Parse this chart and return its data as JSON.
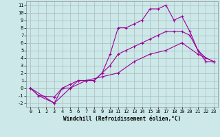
{
  "title": "",
  "xlabel": "Windchill (Refroidissement éolien,°C)",
  "ylabel": "",
  "bg_color": "#cce8e8",
  "line_color": "#990099",
  "grid_color": "#aabbbb",
  "xlim": [
    -0.5,
    23.5
  ],
  "ylim": [
    -2.5,
    11.5
  ],
  "xticks": [
    0,
    1,
    2,
    3,
    4,
    5,
    6,
    7,
    8,
    9,
    10,
    11,
    12,
    13,
    14,
    15,
    16,
    17,
    18,
    19,
    20,
    21,
    22,
    23
  ],
  "yticks": [
    -2,
    -1,
    0,
    1,
    2,
    3,
    4,
    5,
    6,
    7,
    8,
    9,
    10,
    11
  ],
  "line1": {
    "x": [
      0,
      1,
      3,
      4,
      5,
      6,
      7,
      8,
      9,
      10,
      11,
      12,
      13,
      14,
      15,
      16,
      17,
      18,
      19,
      20,
      21,
      22,
      23
    ],
    "y": [
      0,
      -1,
      -2,
      0,
      0,
      1,
      1,
      1,
      2,
      4.5,
      8,
      8,
      8.5,
      9,
      10.5,
      10.5,
      11,
      9,
      9.5,
      7.5,
      5,
      3.5,
      3.5
    ]
  },
  "line2": {
    "x": [
      0,
      1,
      3,
      4,
      5,
      6,
      7,
      8,
      9,
      10,
      11,
      12,
      13,
      14,
      15,
      16,
      17,
      18,
      19,
      20,
      21,
      22,
      23
    ],
    "y": [
      0,
      -1,
      -1.2,
      0,
      0.5,
      1,
      1,
      1,
      2,
      3,
      4.5,
      5,
      5.5,
      6,
      6.5,
      7,
      7.5,
      7.5,
      7.5,
      7,
      5,
      4,
      3.5
    ]
  },
  "line3": {
    "x": [
      0,
      3,
      5,
      7,
      9,
      11,
      13,
      15,
      17,
      19,
      21,
      23
    ],
    "y": [
      0,
      -2,
      0,
      1,
      1.5,
      2,
      3.5,
      4.5,
      5,
      6,
      4.5,
      3.5
    ]
  },
  "marker": "+",
  "markersize": 3,
  "linewidth": 0.8,
  "tick_fontsize": 5,
  "xlabel_fontsize": 5.5
}
